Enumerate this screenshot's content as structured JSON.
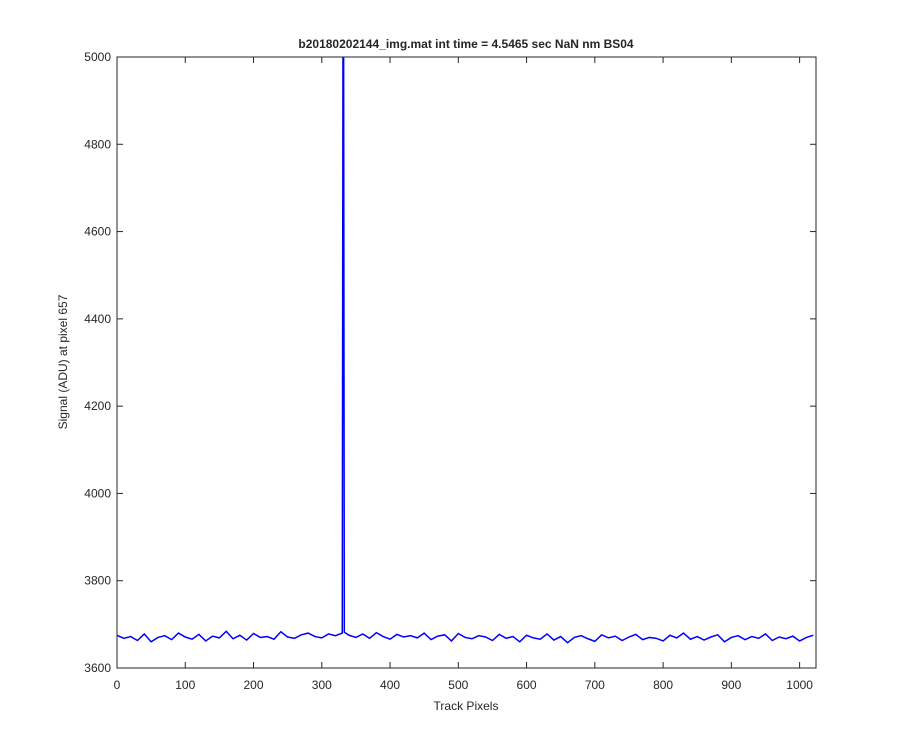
{
  "chart_data": {
    "type": "line",
    "title": "b20180202144_img.mat int time = 4.5465 sec  NaN nm BS04",
    "x_label": "Track Pixels",
    "y_label": "Signal (ADU) at pixel 657",
    "x": [
      0,
      10,
      20,
      30,
      40,
      50,
      60,
      70,
      80,
      90,
      100,
      110,
      120,
      130,
      140,
      150,
      160,
      170,
      180,
      190,
      200,
      210,
      220,
      230,
      240,
      250,
      260,
      270,
      280,
      290,
      300,
      310,
      320,
      330,
      331,
      332,
      333,
      340,
      350,
      360,
      370,
      380,
      390,
      400,
      410,
      420,
      430,
      440,
      450,
      460,
      470,
      480,
      490,
      500,
      510,
      520,
      530,
      540,
      550,
      560,
      570,
      580,
      590,
      600,
      610,
      620,
      630,
      640,
      650,
      660,
      670,
      680,
      690,
      700,
      710,
      720,
      730,
      740,
      750,
      760,
      770,
      780,
      790,
      800,
      810,
      820,
      830,
      840,
      850,
      860,
      870,
      880,
      890,
      900,
      910,
      920,
      930,
      940,
      950,
      960,
      970,
      980,
      990,
      1000,
      1010,
      1020
    ],
    "series": [
      {
        "color": "#0000ff",
        "values": [
          3675,
          3668,
          3672,
          3663,
          3678,
          3660,
          3670,
          3674,
          3665,
          3680,
          3671,
          3666,
          3677,
          3662,
          3673,
          3669,
          3684,
          3667,
          3675,
          3664,
          3679,
          3670,
          3672,
          3666,
          3683,
          3671,
          3668,
          3676,
          3680,
          3672,
          3669,
          3678,
          3674,
          3680,
          5000,
          5000,
          3682,
          3675,
          3670,
          3678,
          3668,
          3681,
          3672,
          3666,
          3677,
          3671,
          3674,
          3669,
          3680,
          3665,
          3673,
          3676,
          3662,
          3679,
          3670,
          3667,
          3674,
          3671,
          3663,
          3677,
          3668,
          3672,
          3660,
          3675,
          3669,
          3666,
          3678,
          3664,
          3672,
          3658,
          3670,
          3674,
          3667,
          3661,
          3676,
          3669,
          3673,
          3663,
          3671,
          3677,
          3665,
          3670,
          3668,
          3662,
          3675,
          3669,
          3680,
          3666,
          3672,
          3664,
          3671,
          3676,
          3660,
          3670,
          3674,
          3665,
          3672,
          3668,
          3678,
          3663,
          3671,
          3667,
          3673,
          3662,
          3670,
          3675
        ]
      }
    ],
    "xlim": [
      0,
      1024
    ],
    "xticks": [
      0,
      100,
      200,
      300,
      400,
      500,
      600,
      700,
      800,
      900,
      1000
    ],
    "ylim": [
      3600,
      5000
    ],
    "yticks": [
      3600,
      3800,
      4000,
      4200,
      4400,
      4600,
      4800,
      5000
    ]
  }
}
